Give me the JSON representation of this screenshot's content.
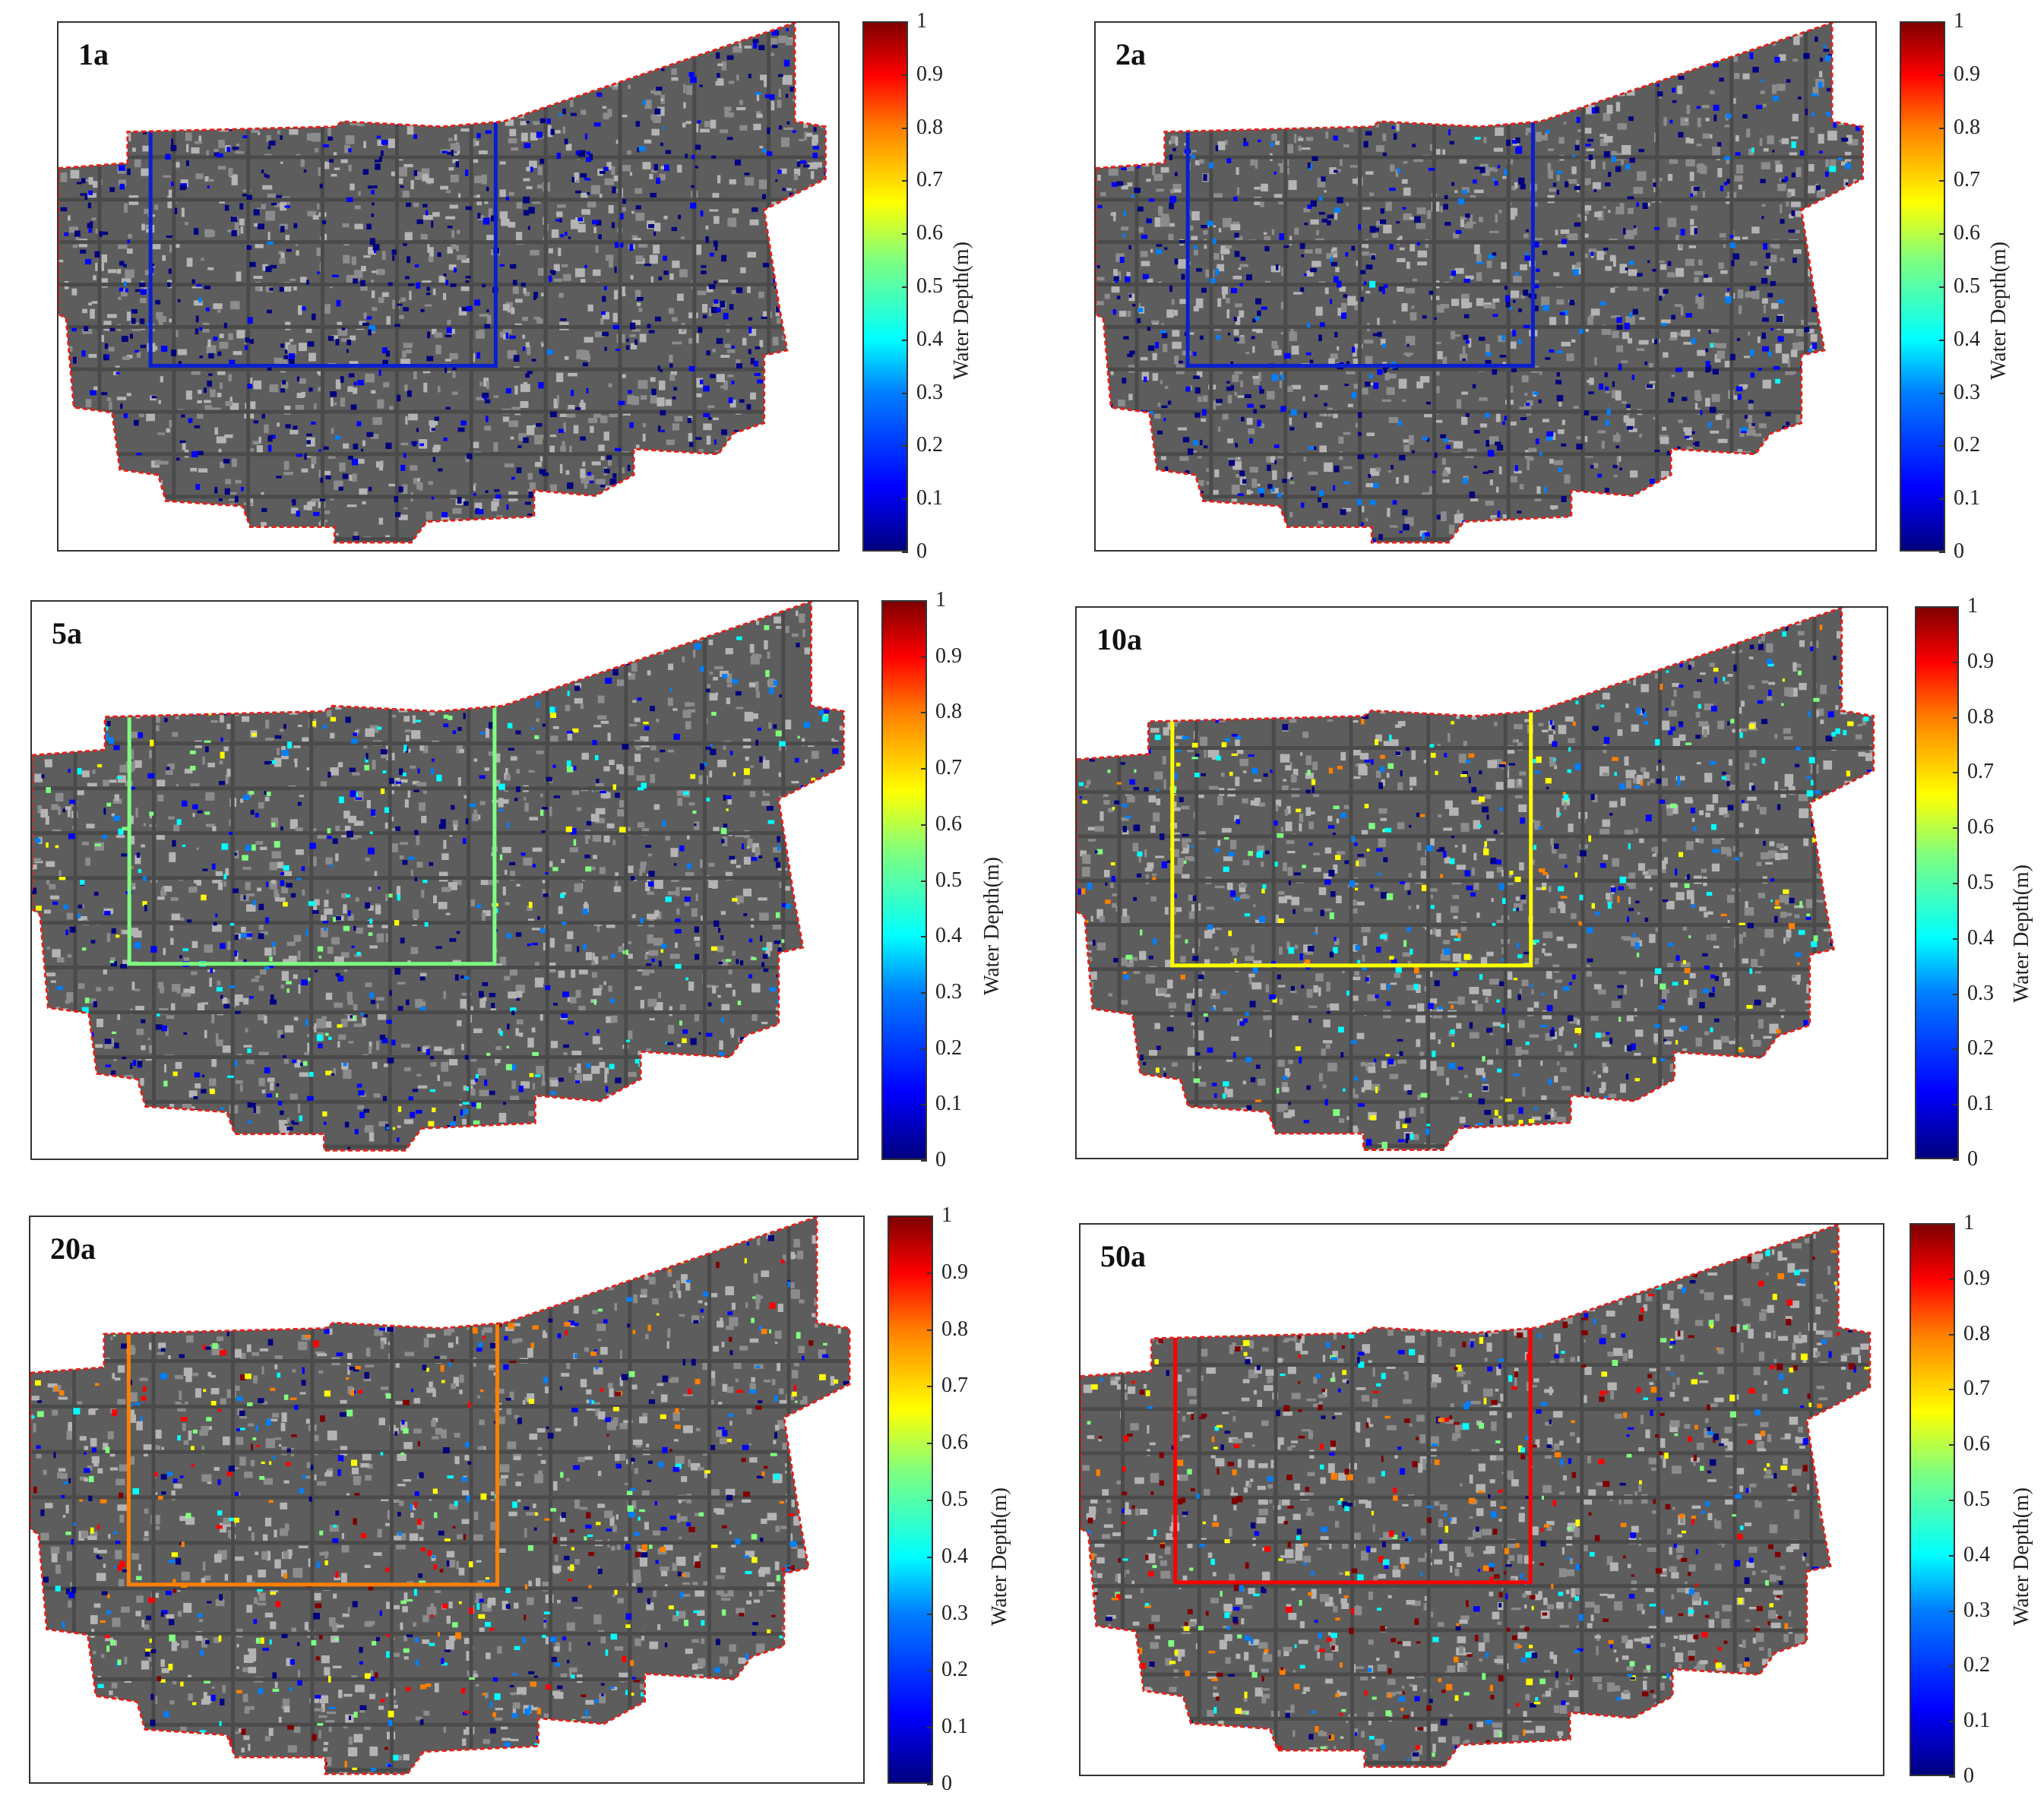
{
  "panels": [
    {
      "label": "1a"
    },
    {
      "label": "2a"
    },
    {
      "label": "5a"
    },
    {
      "label": "10a"
    },
    {
      "label": "20a"
    },
    {
      "label": "50a"
    }
  ],
  "colorbar": {
    "title": "Water Depth(m)",
    "ticks": [
      "0",
      "0.1",
      "0.2",
      "0.3",
      "0.4",
      "0.5",
      "0.6",
      "0.7",
      "0.8",
      "0.9",
      "1"
    ],
    "colors": [
      "#00007f",
      "#0000ff",
      "#007fff",
      "#00ffff",
      "#7fff7f",
      "#ffff00",
      "#ff7f00",
      "#ff0000",
      "#7f0000"
    ]
  },
  "map_colors": {
    "city_fill": "#5d5d5d",
    "boundary": "#e0231c",
    "wall": "#0a1fd0"
  }
}
